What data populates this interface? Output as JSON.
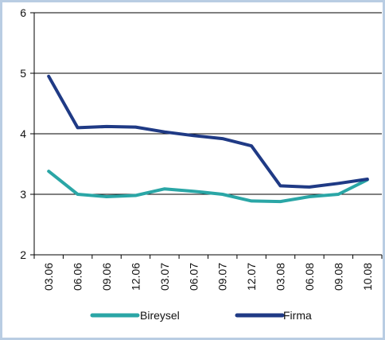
{
  "chart_data": {
    "type": "line",
    "categories": [
      "03.06",
      "06.06",
      "09.06",
      "12.06",
      "03.07",
      "06.07",
      "09.07",
      "12.07",
      "03.08",
      "06.08",
      "09.08",
      "10.08"
    ],
    "series": [
      {
        "name": "Bireysel",
        "color": "#2aa6a6",
        "values": [
          3.38,
          3.0,
          2.96,
          2.98,
          3.09,
          3.05,
          3.0,
          2.89,
          2.88,
          2.96,
          3.0,
          3.24
        ]
      },
      {
        "name": "Firma",
        "color": "#1f3a85",
        "values": [
          4.95,
          4.1,
          4.12,
          4.11,
          4.03,
          3.97,
          3.92,
          3.8,
          3.14,
          3.12,
          3.18,
          3.25
        ]
      }
    ],
    "yticks": [
      2,
      3,
      4,
      5,
      6
    ],
    "ylim": [
      2,
      6
    ],
    "grid": true,
    "legend": "bottom",
    "title": "",
    "xlabel": "",
    "ylabel": ""
  }
}
